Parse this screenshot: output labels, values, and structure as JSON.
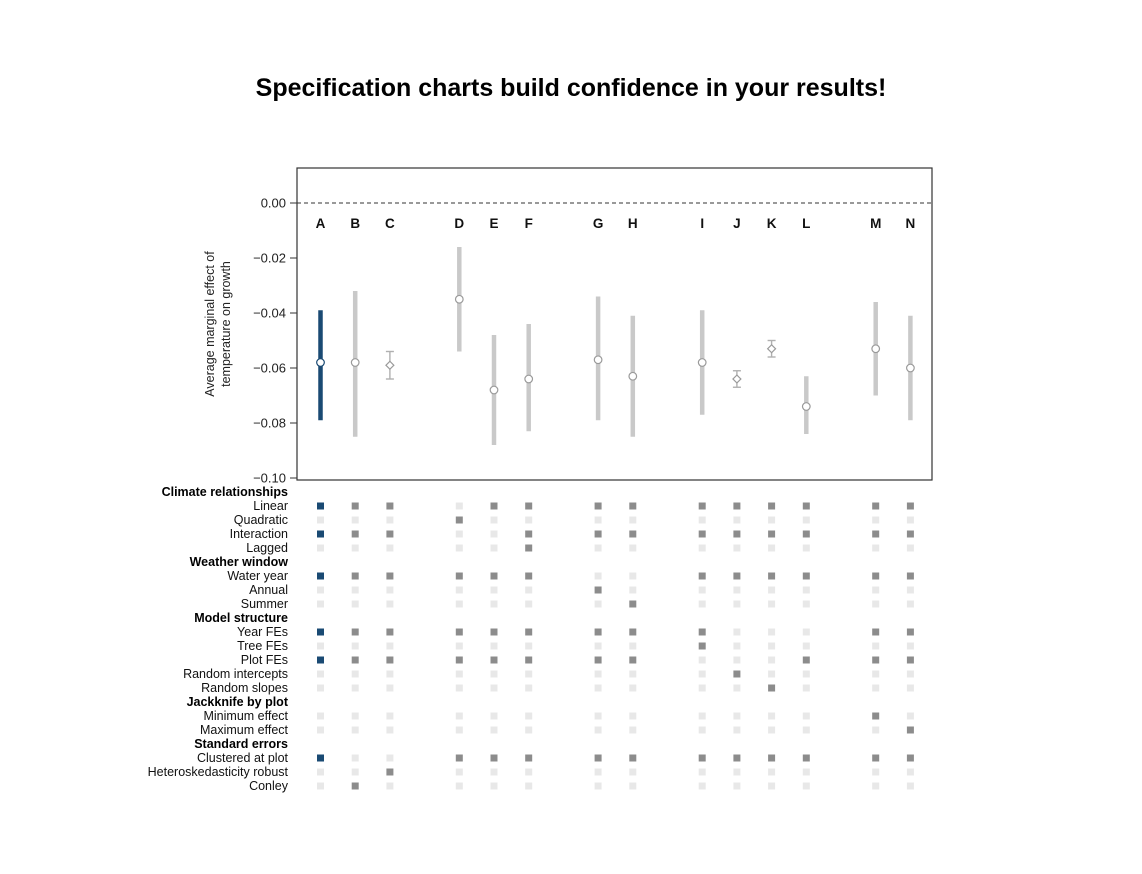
{
  "title": "Specification charts build confidence in your results!",
  "chart_data": {
    "type": "scatter",
    "subtype": "specification_chart",
    "title": "",
    "ylabel_lines": [
      "Average marginal effect of",
      "temperature on growth"
    ],
    "xlabel": "",
    "axis": {
      "ticks": [
        0,
        -0.02,
        -0.04,
        -0.06,
        -0.08,
        -0.1
      ],
      "tick_labels": [
        "0.00",
        "−0.02",
        "−0.04",
        "−0.06",
        "−0.08",
        "−0.10"
      ],
      "ylim": [
        -0.1,
        0.013
      ],
      "zero_reference_line": 0,
      "grid": false,
      "legend": false
    },
    "groups": [
      [
        "A",
        "B",
        "C"
      ],
      [
        "D",
        "E",
        "F"
      ],
      [
        "G",
        "H"
      ],
      [
        "I",
        "J",
        "K",
        "L"
      ],
      [
        "M",
        "N"
      ]
    ],
    "specs": [
      {
        "label": "A",
        "estimate": -0.058,
        "ci_low": -0.079,
        "ci_high": -0.039,
        "style": "bar",
        "highlight": true
      },
      {
        "label": "B",
        "estimate": -0.058,
        "ci_low": -0.085,
        "ci_high": -0.032,
        "style": "bar",
        "highlight": false
      },
      {
        "label": "C",
        "estimate": -0.059,
        "ci_low": -0.064,
        "ci_high": -0.054,
        "style": "errorbar",
        "highlight": false
      },
      {
        "label": "D",
        "estimate": -0.035,
        "ci_low": -0.054,
        "ci_high": -0.016,
        "style": "bar",
        "highlight": false
      },
      {
        "label": "E",
        "estimate": -0.068,
        "ci_low": -0.088,
        "ci_high": -0.048,
        "style": "bar",
        "highlight": false
      },
      {
        "label": "F",
        "estimate": -0.064,
        "ci_low": -0.083,
        "ci_high": -0.044,
        "style": "bar",
        "highlight": false
      },
      {
        "label": "G",
        "estimate": -0.057,
        "ci_low": -0.079,
        "ci_high": -0.034,
        "style": "bar",
        "highlight": false
      },
      {
        "label": "H",
        "estimate": -0.063,
        "ci_low": -0.085,
        "ci_high": -0.041,
        "style": "bar",
        "highlight": false
      },
      {
        "label": "I",
        "estimate": -0.058,
        "ci_low": -0.077,
        "ci_high": -0.039,
        "style": "bar",
        "highlight": false
      },
      {
        "label": "J",
        "estimate": -0.064,
        "ci_low": -0.067,
        "ci_high": -0.061,
        "style": "errorbar",
        "highlight": false
      },
      {
        "label": "K",
        "estimate": -0.053,
        "ci_low": -0.056,
        "ci_high": -0.05,
        "style": "errorbar",
        "highlight": false
      },
      {
        "label": "L",
        "estimate": -0.074,
        "ci_low": -0.084,
        "ci_high": -0.063,
        "style": "bar",
        "highlight": false
      },
      {
        "label": "M",
        "estimate": -0.053,
        "ci_low": -0.07,
        "ci_high": -0.036,
        "style": "bar",
        "highlight": false
      },
      {
        "label": "N",
        "estimate": -0.06,
        "ci_low": -0.079,
        "ci_high": -0.041,
        "style": "bar",
        "highlight": false
      }
    ],
    "colors": {
      "highlight": "#1a4a73",
      "bar": "#c9c9c9",
      "errorbar": "#b0b0b0",
      "point_stroke": "#9a9a9a",
      "active_square": "#8c8c8c",
      "inactive_square": "#e8e8e8"
    }
  },
  "matrix": {
    "rows": [
      {
        "type": "header",
        "label": "Climate relationships"
      },
      {
        "type": "item",
        "label": "Linear",
        "active": [
          "A",
          "B",
          "C",
          "E",
          "F",
          "G",
          "H",
          "I",
          "J",
          "K",
          "L",
          "M",
          "N"
        ]
      },
      {
        "type": "item",
        "label": "Quadratic",
        "active": [
          "D"
        ]
      },
      {
        "type": "item",
        "label": "Interaction",
        "active": [
          "A",
          "B",
          "C",
          "F",
          "G",
          "H",
          "I",
          "J",
          "K",
          "L",
          "M",
          "N"
        ]
      },
      {
        "type": "item",
        "label": "Lagged",
        "active": [
          "F"
        ]
      },
      {
        "type": "header",
        "label": "Weather window"
      },
      {
        "type": "item",
        "label": "Water year",
        "active": [
          "A",
          "B",
          "C",
          "D",
          "E",
          "F",
          "I",
          "J",
          "K",
          "L",
          "M",
          "N"
        ]
      },
      {
        "type": "item",
        "label": "Annual",
        "active": [
          "G"
        ]
      },
      {
        "type": "item",
        "label": "Summer",
        "active": [
          "H"
        ]
      },
      {
        "type": "header",
        "label": "Model structure"
      },
      {
        "type": "item",
        "label": "Year FEs",
        "active": [
          "A",
          "B",
          "C",
          "D",
          "E",
          "F",
          "G",
          "H",
          "I",
          "M",
          "N"
        ]
      },
      {
        "type": "item",
        "label": "Tree FEs",
        "active": [
          "I"
        ]
      },
      {
        "type": "item",
        "label": "Plot FEs",
        "active": [
          "A",
          "B",
          "C",
          "D",
          "E",
          "F",
          "G",
          "H",
          "L",
          "M",
          "N"
        ]
      },
      {
        "type": "item",
        "label": "Random intercepts",
        "active": [
          "J"
        ]
      },
      {
        "type": "item",
        "label": "Random slopes",
        "active": [
          "K"
        ]
      },
      {
        "type": "header",
        "label": "Jackknife by plot"
      },
      {
        "type": "item",
        "label": "Minimum effect",
        "active": [
          "M"
        ]
      },
      {
        "type": "item",
        "label": "Maximum effect",
        "active": [
          "N"
        ]
      },
      {
        "type": "header",
        "label": "Standard errors"
      },
      {
        "type": "item",
        "label": "Clustered at plot",
        "active": [
          "A",
          "D",
          "E",
          "F",
          "G",
          "H",
          "I",
          "J",
          "K",
          "L",
          "M",
          "N"
        ]
      },
      {
        "type": "item",
        "label": "Heteroskedasticity robust",
        "active": [
          "C"
        ]
      },
      {
        "type": "item",
        "label": "Conley",
        "active": [
          "B"
        ]
      }
    ]
  }
}
